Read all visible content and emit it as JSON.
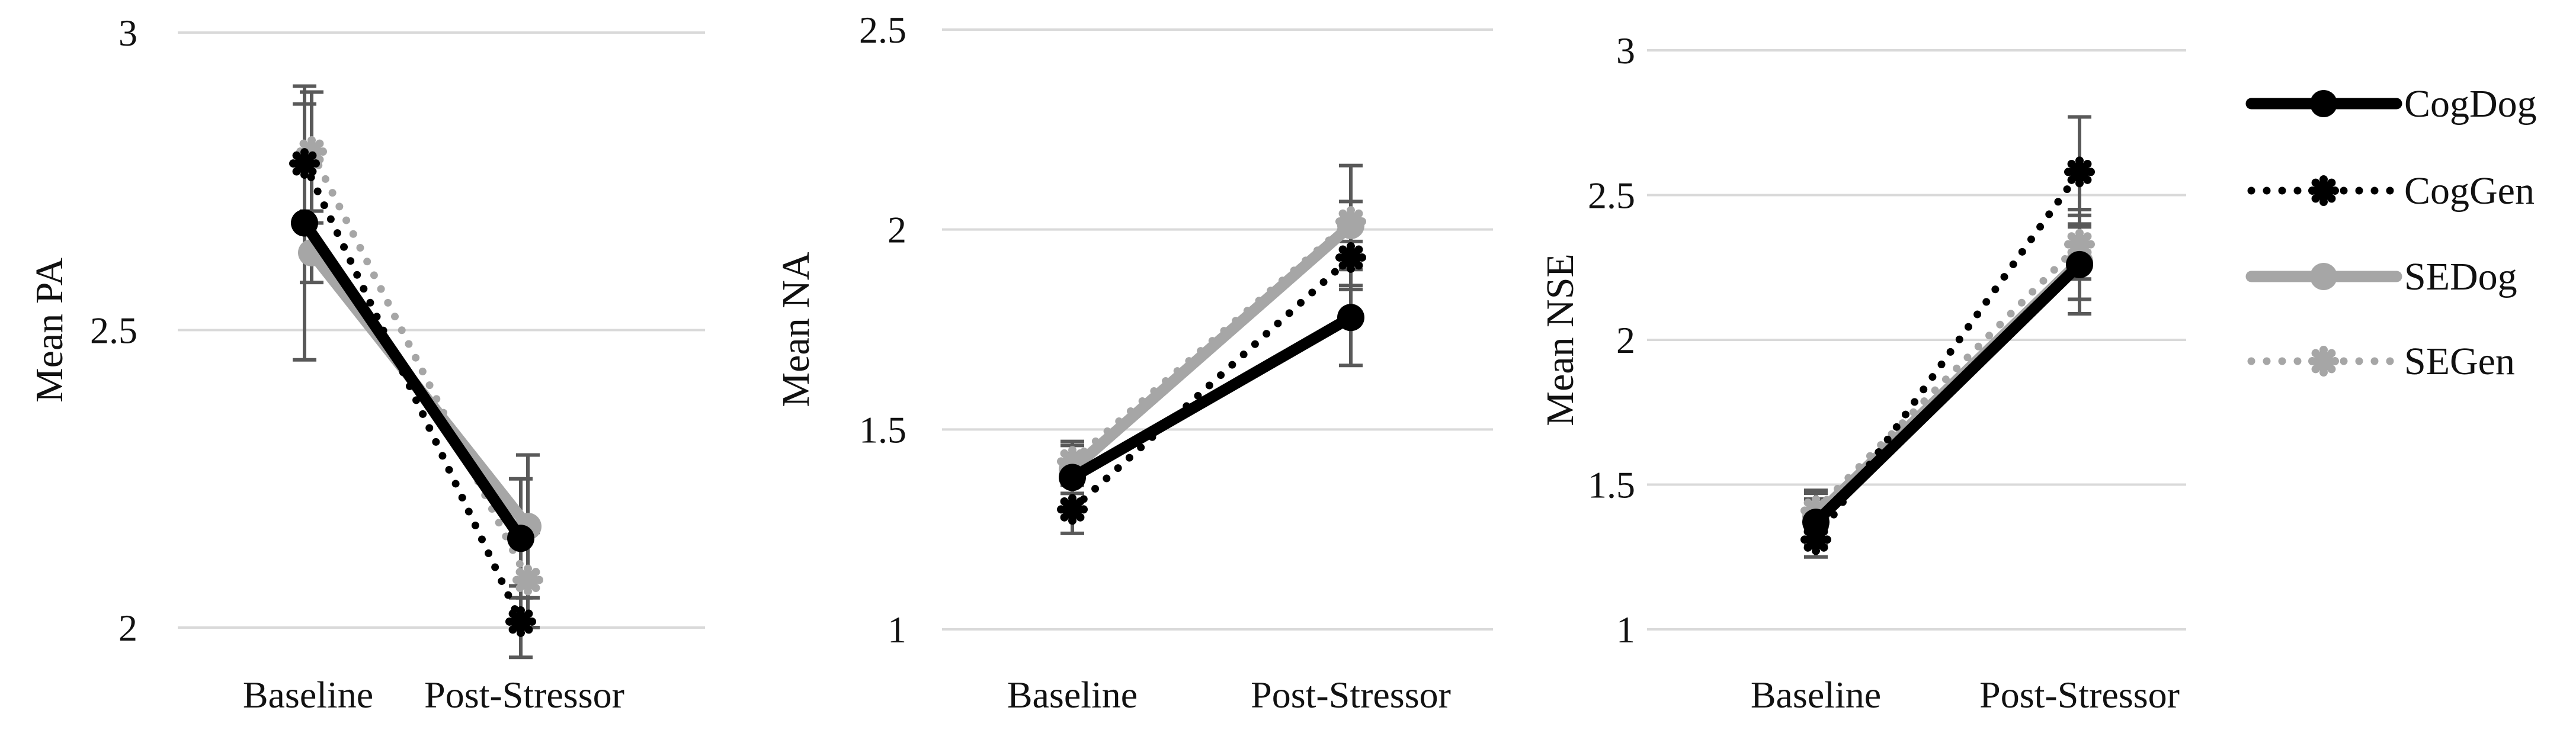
{
  "chart_data": [
    {
      "type": "line",
      "ylabel": "Mean PA",
      "categories": [
        "Baseline",
        "Post-Stressor"
      ],
      "ylim": [
        2,
        3
      ],
      "yticks": [
        "2",
        "2.5",
        "3"
      ],
      "grid": true,
      "series": [
        {
          "name": "CogDog",
          "values": [
            2.68,
            2.15
          ],
          "error": [
            0.23,
            0.1
          ]
        },
        {
          "name": "CogGen",
          "values": [
            2.78,
            2.01
          ],
          "error": [
            0.1,
            0.06
          ]
        },
        {
          "name": "SEDog",
          "values": [
            2.63,
            2.17
          ],
          "error": [
            0.05,
            0.12
          ]
        },
        {
          "name": "SEGen",
          "values": [
            2.8,
            2.08
          ],
          "error": [
            0.1,
            0.08
          ]
        }
      ]
    },
    {
      "type": "line",
      "ylabel": "Mean NA",
      "categories": [
        "Baseline",
        "Post-Stressor"
      ],
      "ylim": [
        1,
        2.5
      ],
      "yticks": [
        "1",
        "1.5",
        "2",
        "2.5"
      ],
      "grid": true,
      "series": [
        {
          "name": "CogDog",
          "values": [
            1.38,
            1.78
          ],
          "error": [
            0.06,
            0.12
          ]
        },
        {
          "name": "CogGen",
          "values": [
            1.3,
            1.93
          ],
          "error": [
            0.06,
            0.08
          ]
        },
        {
          "name": "SEDog",
          "values": [
            1.4,
            2.01
          ],
          "error": [
            0.06,
            0.15
          ]
        },
        {
          "name": "SEGen",
          "values": [
            1.42,
            2.02
          ],
          "error": [
            0.05,
            0.05
          ]
        }
      ]
    },
    {
      "type": "line",
      "ylabel": "Mean NSE",
      "categories": [
        "Baseline",
        "Post-Stressor"
      ],
      "ylim": [
        1,
        3
      ],
      "yticks": [
        "1",
        "1.5",
        "2",
        "2.5",
        "3"
      ],
      "grid": true,
      "series": [
        {
          "name": "CogDog",
          "values": [
            1.37,
            2.26
          ],
          "error": [
            0.08,
            0.17
          ]
        },
        {
          "name": "CogGen",
          "values": [
            1.31,
            2.58
          ],
          "error": [
            0.06,
            0.19
          ]
        },
        {
          "name": "SEDog",
          "values": [
            1.39,
            2.27
          ],
          "error": [
            0.08,
            0.13
          ]
        },
        {
          "name": "SEGen",
          "values": [
            1.41,
            2.33
          ],
          "error": [
            0.07,
            0.12
          ]
        }
      ]
    }
  ],
  "legend": {
    "placement": "right",
    "items": [
      {
        "name": "CogDog",
        "color": "#000000",
        "style": "solid"
      },
      {
        "name": "CogGen",
        "color": "#000000",
        "style": "dotted"
      },
      {
        "name": "SEDog",
        "color": "#a6a6a6",
        "style": "solid"
      },
      {
        "name": "SEGen",
        "color": "#a6a6a6",
        "style": "dotted"
      }
    ]
  },
  "colors": {
    "black": "#000000",
    "gray": "#a6a6a6",
    "grid": "#d9d9d9",
    "error_bar": "#595959"
  }
}
